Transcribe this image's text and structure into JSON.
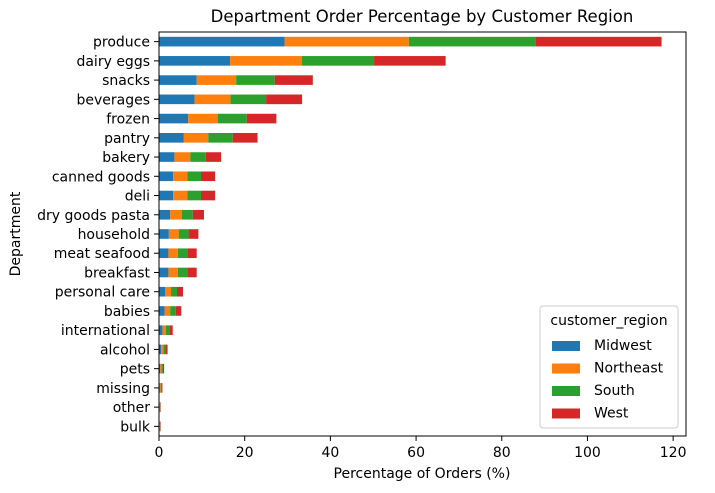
{
  "chart_data": {
    "type": "bar",
    "orientation": "horizontal",
    "stacked": true,
    "title": "Department Order Percentage by Customer Region",
    "xlabel": "Percentage of Orders (%)",
    "ylabel": "Department",
    "xlim": [
      0,
      123
    ],
    "xticks": [
      "0",
      "20",
      "40",
      "60",
      "80",
      "100",
      "120"
    ],
    "categories": [
      "produce",
      "dairy eggs",
      "snacks",
      "beverages",
      "frozen",
      "pantry",
      "bakery",
      "canned goods",
      "deli",
      "dry goods pasta",
      "household",
      "meat seafood",
      "breakfast",
      "personal care",
      "babies",
      "international",
      "alcohol",
      "pets",
      "missing",
      "other",
      "bulk"
    ],
    "series": [
      {
        "name": "Midwest",
        "color": "#1f77b4",
        "values": [
          29.3,
          16.6,
          8.8,
          8.3,
          6.8,
          5.8,
          3.6,
          3.3,
          3.3,
          2.6,
          2.3,
          2.2,
          2.2,
          1.4,
          1.3,
          0.8,
          0.5,
          0.3,
          0.2,
          0.1,
          0.1
        ]
      },
      {
        "name": "Northeast",
        "color": "#ff7f0e",
        "values": [
          29.0,
          16.7,
          9.2,
          8.4,
          6.9,
          5.7,
          3.7,
          3.3,
          3.3,
          2.7,
          2.3,
          2.2,
          2.2,
          1.4,
          1.3,
          0.8,
          0.5,
          0.3,
          0.2,
          0.1,
          0.1
        ]
      },
      {
        "name": "South",
        "color": "#2ca02c",
        "values": [
          29.6,
          16.9,
          9.0,
          8.3,
          6.8,
          5.7,
          3.6,
          3.2,
          3.2,
          2.6,
          2.3,
          2.2,
          2.2,
          1.4,
          1.3,
          0.8,
          0.5,
          0.3,
          0.2,
          0.1,
          0.1
        ]
      },
      {
        "name": "West",
        "color": "#d62728",
        "values": [
          29.4,
          16.7,
          8.9,
          8.4,
          6.9,
          5.8,
          3.6,
          3.3,
          3.3,
          2.6,
          2.3,
          2.2,
          2.2,
          1.4,
          1.3,
          0.8,
          0.5,
          0.3,
          0.2,
          0.1,
          0.1
        ]
      }
    ],
    "grid": false,
    "legend": {
      "title": "customer_region",
      "position": "lower-right"
    }
  }
}
